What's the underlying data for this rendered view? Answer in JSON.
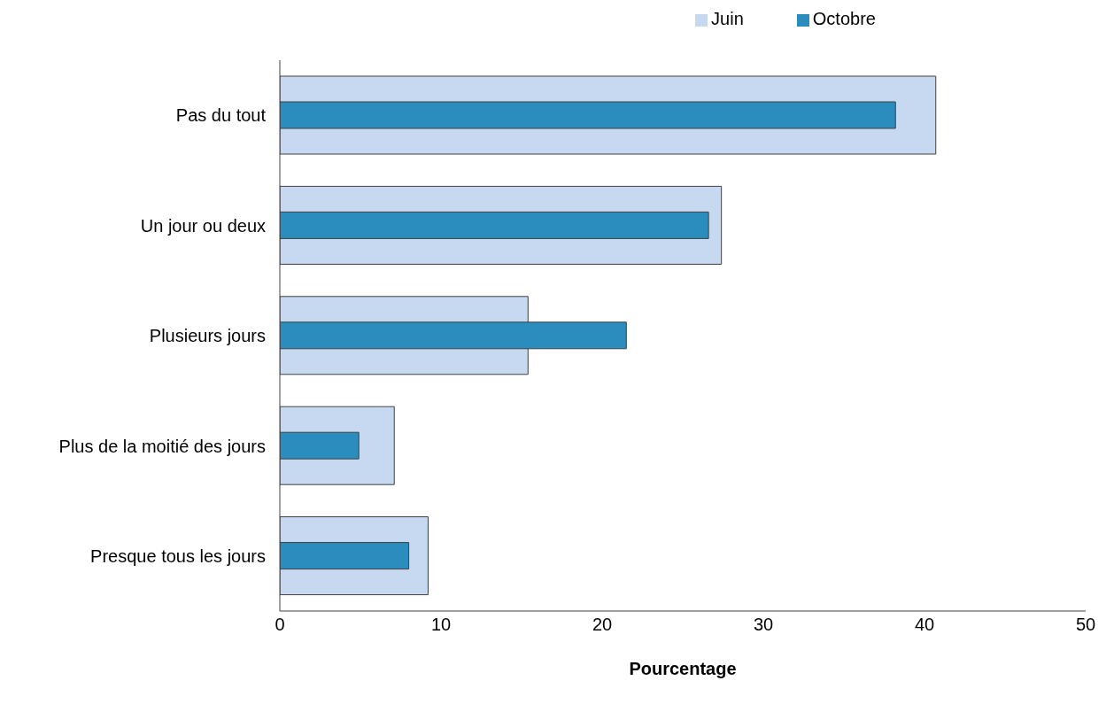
{
  "chart_data": {
    "type": "bar",
    "orientation": "horizontal",
    "xlabel": "Pourcentage",
    "categories": [
      "Pas du tout",
      "Un jour ou deux",
      "Plusieurs jours",
      "Plus de la moitié des jours",
      "Presque tous les jours"
    ],
    "series": [
      {
        "name": "Juin",
        "color": "#c6d9f1",
        "values": [
          40.7,
          27.4,
          15.4,
          7.1,
          9.2
        ]
      },
      {
        "name": "Octobre",
        "color": "#2b8cbe",
        "values": [
          38.2,
          26.6,
          21.5,
          4.9,
          8.0
        ]
      }
    ],
    "xlim": [
      0,
      50
    ],
    "xticks": [
      0,
      10,
      20,
      30,
      40,
      50
    ],
    "grid": false,
    "legend": "top"
  }
}
